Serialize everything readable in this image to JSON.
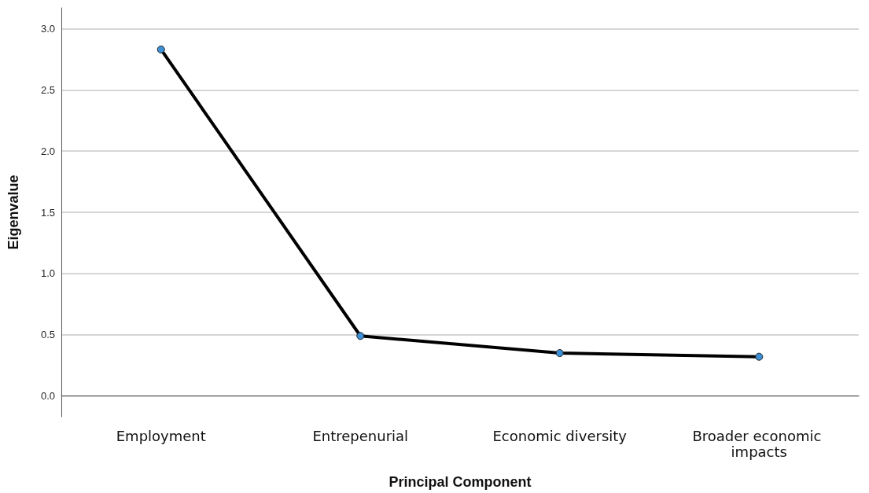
{
  "chart_data": {
    "type": "line",
    "xlabel": "Principal Component",
    "ylabel": "Eigenvalue",
    "categories": [
      "Employment",
      "Entrepenurial",
      "Economic diversity",
      "Broader economic impacts"
    ],
    "series": [
      {
        "color": "#000000",
        "values": [
          2.83,
          0.49,
          0.35,
          0.32
        ]
      }
    ],
    "ylim": [
      -0.17,
      3.17
    ],
    "yticks": [
      {
        "value": 0,
        "label": "0.0"
      },
      {
        "value": 0.5,
        "label": "0.5"
      },
      {
        "value": 1,
        "label": "1.0"
      },
      {
        "value": 1.5,
        "label": "1.5"
      },
      {
        "value": 2,
        "label": "2.0"
      },
      {
        "value": 2.5,
        "label": "2.5"
      },
      {
        "value": 3,
        "label": "3.0"
      }
    ],
    "grid": "y",
    "marker": "circle",
    "line_style": "solid"
  }
}
